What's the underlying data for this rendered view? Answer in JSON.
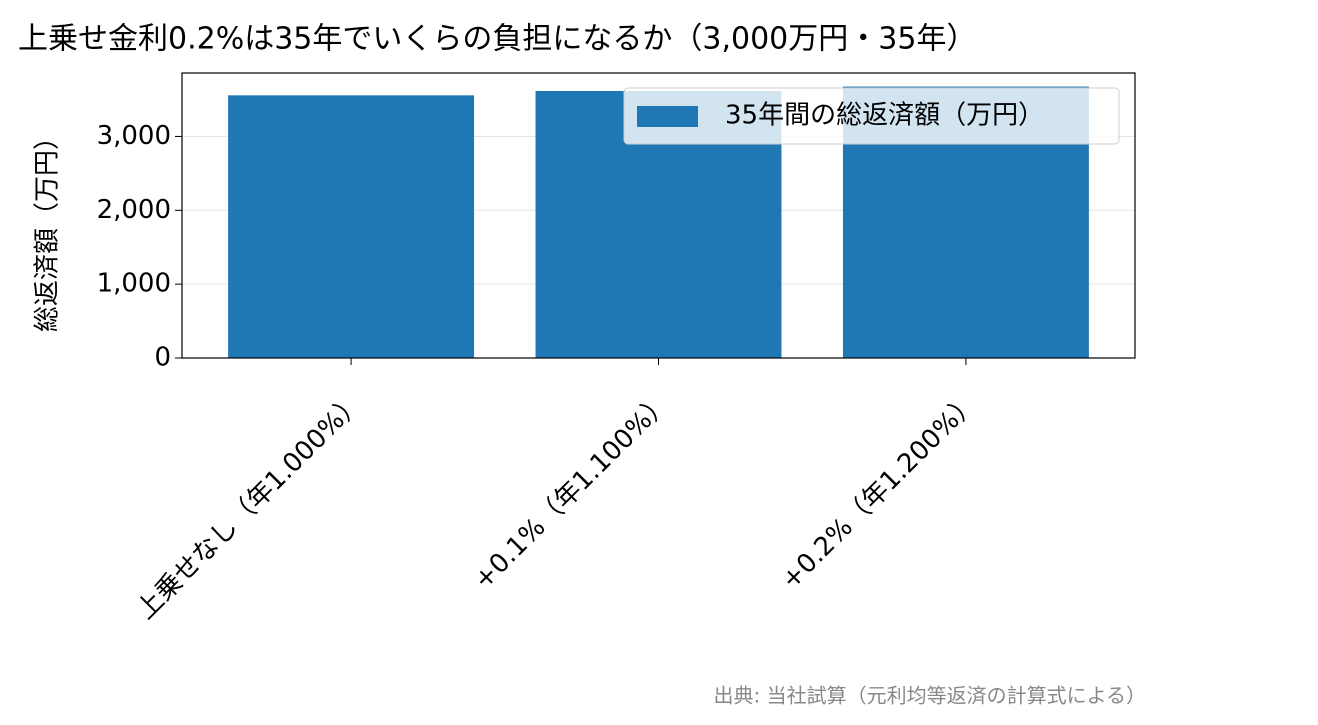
{
  "chart_data": {
    "type": "bar",
    "title": "上乗せ金利0.2%は35年でいくらの負担になるか（3,000万円・35年）",
    "ylabel": "総返済額（万円）",
    "categories": [
      "上乗せなし（年1.000%）",
      "+0.1%（年1.100%）",
      "+0.2%（年1.200%）"
    ],
    "series": [
      {
        "name": "35年間の総返済額（万円）",
        "color": "#1f77b4",
        "values": [
          3556.8,
          3615.6,
          3675.4
        ]
      }
    ],
    "ylim": [
      0,
      3859
    ],
    "yticks": [
      0,
      {
        "value": 1000,
        "label": "1,000"
      },
      {
        "value": 2000,
        "label": "2,000"
      },
      {
        "value": 3000,
        "label": "3,000"
      }
    ],
    "grid": true,
    "legend": "upper right",
    "source": "出典: 当社試算（元利均等返済の計算式による）"
  }
}
